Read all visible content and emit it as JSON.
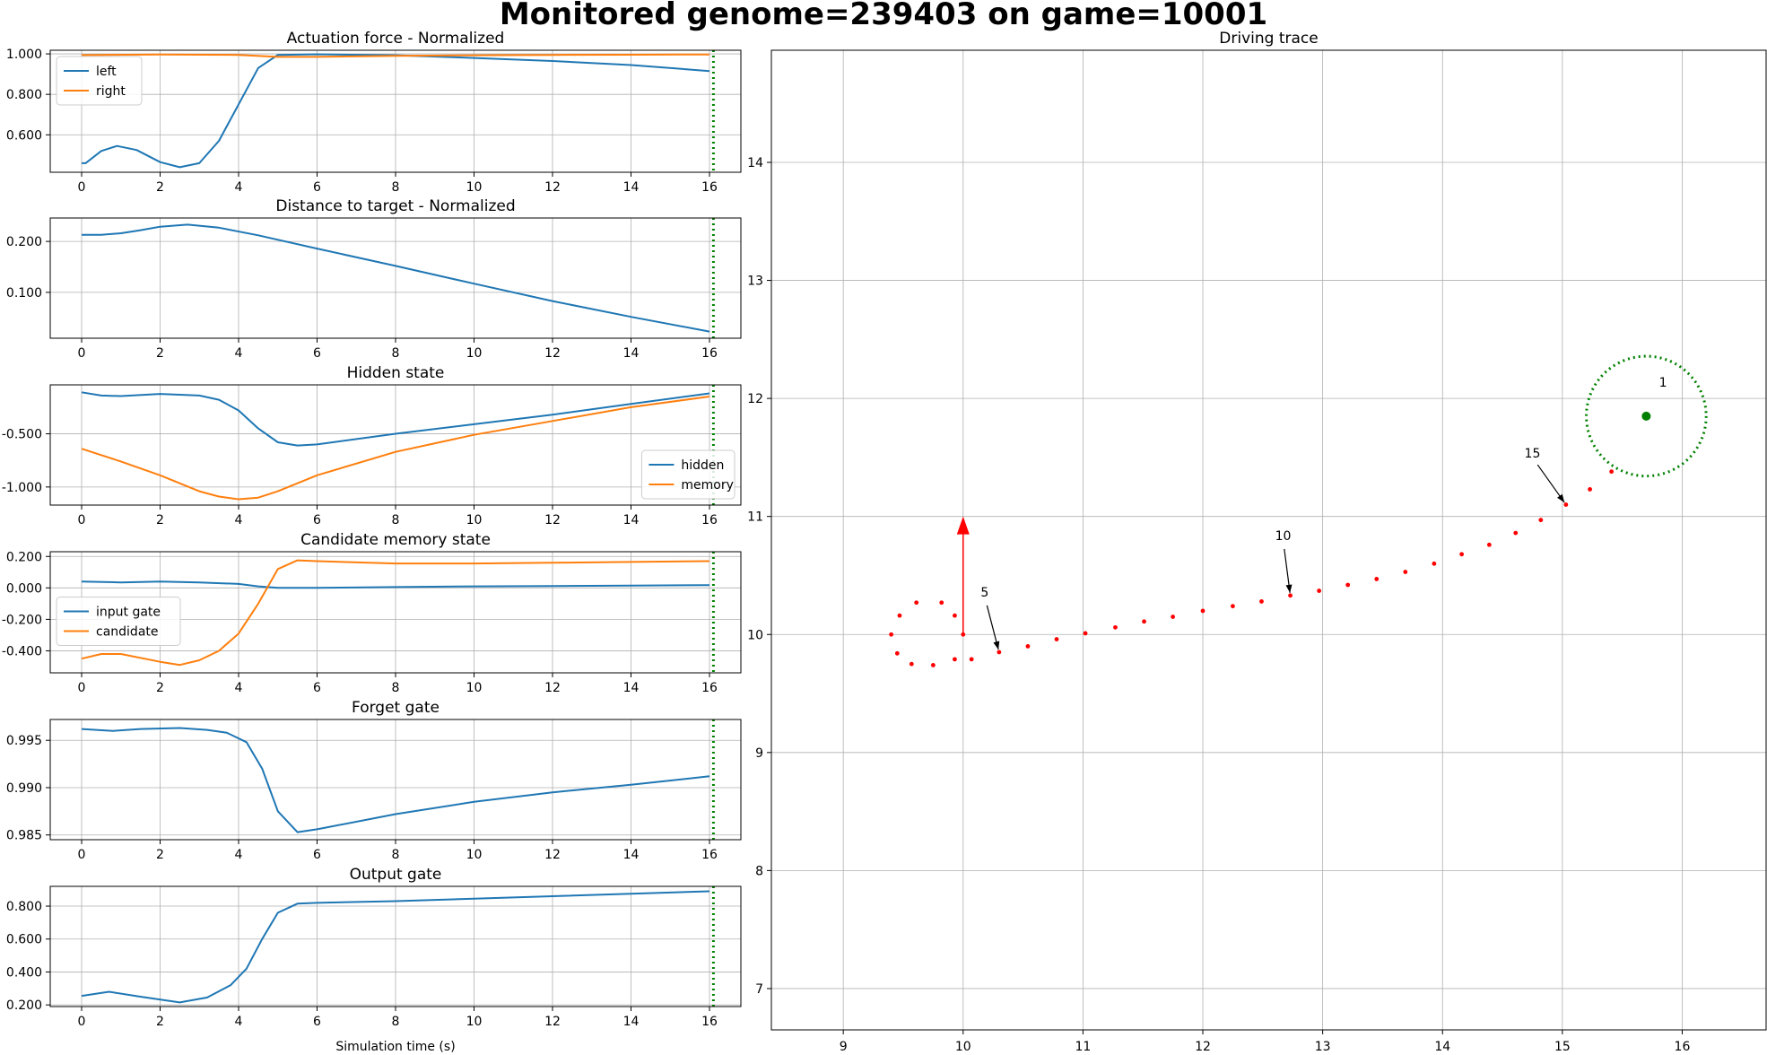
{
  "figure": {
    "title": "Monitored genome=239403 on game=10001",
    "colors": {
      "blue": "#1f77b4",
      "orange": "#ff7f0e",
      "marker": "#008000",
      "trace": "#ff0000",
      "grid": "#b0b0b0"
    }
  },
  "chart_data": [
    {
      "type": "line",
      "title": "Actuation force - Normalized",
      "xlabel": "",
      "xlim": [
        -0.8,
        16.8
      ],
      "ylim": [
        0.415,
        1.018
      ],
      "xticks": [
        0,
        2,
        4,
        6,
        8,
        10,
        12,
        14,
        16
      ],
      "yticks": [
        0.6,
        0.8,
        1.0
      ],
      "ytick_labels": [
        "0.600",
        "0.800",
        "1.000"
      ],
      "marker_x": 16.1,
      "legend": "upper-left",
      "grid": true,
      "series": [
        {
          "name": "left",
          "color": "#1f77b4",
          "x": [
            0,
            0.1,
            0.5,
            0.9,
            1.4,
            2.0,
            2.5,
            3.0,
            3.5,
            4.0,
            4.5,
            5.0,
            6.0,
            8.0,
            10.0,
            12.0,
            14.0,
            16.0
          ],
          "y": [
            0.46,
            0.46,
            0.52,
            0.545,
            0.525,
            0.465,
            0.44,
            0.46,
            0.57,
            0.75,
            0.93,
            0.995,
            0.998,
            0.993,
            0.98,
            0.965,
            0.945,
            0.915
          ]
        },
        {
          "name": "right",
          "color": "#ff7f0e",
          "x": [
            0,
            2,
            4,
            5,
            6,
            8,
            10,
            12,
            14,
            16
          ],
          "y": [
            0.994,
            0.997,
            0.995,
            0.985,
            0.985,
            0.99,
            0.993,
            0.995,
            0.996,
            0.997
          ]
        }
      ]
    },
    {
      "type": "line",
      "title": "Distance to target - Normalized",
      "xlabel": "",
      "xlim": [
        -0.8,
        16.8
      ],
      "ylim": [
        0.01,
        0.246
      ],
      "xticks": [
        0,
        2,
        4,
        6,
        8,
        10,
        12,
        14,
        16
      ],
      "yticks": [
        0.1,
        0.2
      ],
      "ytick_labels": [
        "0.100",
        "0.200"
      ],
      "marker_x": 16.1,
      "legend": "none",
      "grid": true,
      "series": [
        {
          "name": "",
          "color": "#1f77b4",
          "x": [
            0,
            0.5,
            1,
            1.5,
            2,
            2.7,
            3.5,
            4.5,
            6,
            8,
            10,
            12,
            14,
            16
          ],
          "y": [
            0.213,
            0.213,
            0.216,
            0.222,
            0.229,
            0.233,
            0.227,
            0.212,
            0.186,
            0.152,
            0.117,
            0.083,
            0.052,
            0.023
          ]
        }
      ]
    },
    {
      "type": "line",
      "title": "Hidden state",
      "xlabel": "",
      "xlim": [
        -0.8,
        16.8
      ],
      "ylim": [
        -1.17,
        -0.04
      ],
      "xticks": [
        0,
        2,
        4,
        6,
        8,
        10,
        12,
        14,
        16
      ],
      "yticks": [
        -1.0,
        -0.5
      ],
      "ytick_labels": [
        "-1.000",
        "-0.500"
      ],
      "marker_x": 16.1,
      "legend": "lower-right",
      "grid": true,
      "series": [
        {
          "name": "hidden",
          "color": "#1f77b4",
          "x": [
            0,
            0.5,
            1,
            2,
            3,
            3.5,
            4,
            4.5,
            5,
            5.5,
            6,
            8,
            10,
            12,
            14,
            16
          ],
          "y": [
            -0.11,
            -0.14,
            -0.145,
            -0.125,
            -0.14,
            -0.18,
            -0.28,
            -0.45,
            -0.58,
            -0.61,
            -0.6,
            -0.5,
            -0.41,
            -0.32,
            -0.22,
            -0.12
          ]
        },
        {
          "name": "memory",
          "color": "#ff7f0e",
          "x": [
            0,
            1,
            2,
            3,
            3.5,
            4,
            4.5,
            5,
            6,
            8,
            10,
            12,
            14,
            16
          ],
          "y": [
            -0.64,
            -0.76,
            -0.89,
            -1.04,
            -1.09,
            -1.115,
            -1.1,
            -1.04,
            -0.89,
            -0.67,
            -0.51,
            -0.38,
            -0.25,
            -0.15
          ]
        }
      ]
    },
    {
      "type": "line",
      "title": "Candidate memory state",
      "xlabel": "",
      "xlim": [
        -0.8,
        16.8
      ],
      "ylim": [
        -0.54,
        0.23
      ],
      "xticks": [
        0,
        2,
        4,
        6,
        8,
        10,
        12,
        14,
        16
      ],
      "yticks": [
        -0.4,
        -0.2,
        0.0,
        0.2
      ],
      "ytick_labels": [
        "-0.400",
        "-0.200",
        "0.000",
        "0.200"
      ],
      "marker_x": 16.1,
      "legend": "center-left",
      "grid": true,
      "series": [
        {
          "name": "input gate",
          "color": "#1f77b4",
          "x": [
            0,
            1,
            2,
            3,
            4,
            4.5,
            5,
            6,
            8,
            10,
            12,
            14,
            16
          ],
          "y": [
            0.04,
            0.035,
            0.04,
            0.035,
            0.025,
            0.01,
            0.0,
            0.0,
            0.005,
            0.01,
            0.012,
            0.015,
            0.018
          ]
        },
        {
          "name": "candidate",
          "color": "#ff7f0e",
          "x": [
            0,
            0.5,
            1,
            2,
            2.5,
            3,
            3.5,
            4,
            4.5,
            5,
            5.5,
            6,
            8,
            10,
            12,
            14,
            16
          ],
          "y": [
            -0.45,
            -0.42,
            -0.42,
            -0.47,
            -0.49,
            -0.46,
            -0.4,
            -0.29,
            -0.1,
            0.12,
            0.175,
            0.17,
            0.155,
            0.155,
            0.16,
            0.165,
            0.17
          ]
        }
      ]
    },
    {
      "type": "line",
      "title": "Forget gate",
      "xlabel": "",
      "xlim": [
        -0.8,
        16.8
      ],
      "ylim": [
        0.9845,
        0.9972
      ],
      "xticks": [
        0,
        2,
        4,
        6,
        8,
        10,
        12,
        14,
        16
      ],
      "yticks": [
        0.985,
        0.99,
        0.995
      ],
      "ytick_labels": [
        "0.985",
        "0.990",
        "0.995"
      ],
      "marker_x": 16.1,
      "legend": "none",
      "grid": true,
      "series": [
        {
          "name": "",
          "color": "#1f77b4",
          "x": [
            0,
            0.8,
            1.5,
            2.5,
            3.2,
            3.7,
            4.2,
            4.6,
            5.0,
            5.5,
            6,
            8,
            10,
            12,
            14,
            16
          ],
          "y": [
            0.9962,
            0.996,
            0.9962,
            0.9963,
            0.9961,
            0.9958,
            0.9948,
            0.992,
            0.9875,
            0.9853,
            0.9856,
            0.9872,
            0.9885,
            0.9895,
            0.9903,
            0.9912
          ]
        }
      ]
    },
    {
      "type": "line",
      "title": "Output gate",
      "xlabel": "Simulation time (s)",
      "xlim": [
        -0.8,
        16.8
      ],
      "ylim": [
        0.19,
        0.92
      ],
      "xticks": [
        0,
        2,
        4,
        6,
        8,
        10,
        12,
        14,
        16
      ],
      "yticks": [
        0.2,
        0.4,
        0.6,
        0.8
      ],
      "ytick_labels": [
        "0.200",
        "0.400",
        "0.600",
        "0.800"
      ],
      "marker_x": 16.1,
      "legend": "none",
      "grid": true,
      "series": [
        {
          "name": "",
          "color": "#1f77b4",
          "x": [
            0,
            0.7,
            1.5,
            2.5,
            3.2,
            3.8,
            4.2,
            4.6,
            5.0,
            5.5,
            6,
            8,
            10,
            12,
            14,
            16
          ],
          "y": [
            0.255,
            0.28,
            0.25,
            0.215,
            0.245,
            0.32,
            0.42,
            0.6,
            0.76,
            0.815,
            0.82,
            0.83,
            0.845,
            0.86,
            0.875,
            0.89
          ]
        }
      ]
    },
    {
      "type": "scatter",
      "title": "Driving trace",
      "xlabel": "",
      "xlim": [
        8.4,
        16.7
      ],
      "ylim": [
        6.65,
        14.95
      ],
      "xticks": [
        9,
        10,
        11,
        12,
        13,
        14,
        15,
        16
      ],
      "yticks": [
        7,
        8,
        9,
        10,
        11,
        12,
        13,
        14
      ],
      "grid": true,
      "target": {
        "x": 15.7,
        "y": 11.85,
        "radius": 0.5
      },
      "start_arrow": {
        "x": 10.0,
        "y": 10.0,
        "dx": 0,
        "dy": 1.0
      },
      "points": {
        "x": [
          10.0,
          9.93,
          9.82,
          9.61,
          9.47,
          9.4,
          9.45,
          9.57,
          9.75,
          9.93,
          10.07,
          10.3,
          10.54,
          10.78,
          11.02,
          11.27,
          11.51,
          11.75,
          12.0,
          12.25,
          12.49,
          12.73,
          12.97,
          13.21,
          13.45,
          13.69,
          13.93,
          14.16,
          14.39,
          14.61,
          14.82,
          15.03,
          15.23,
          15.41
        ],
        "y": [
          10.0,
          10.16,
          10.27,
          10.27,
          10.16,
          10.0,
          9.84,
          9.75,
          9.74,
          9.79,
          9.79,
          9.85,
          9.9,
          9.96,
          10.01,
          10.06,
          10.11,
          10.15,
          10.2,
          10.24,
          10.28,
          10.33,
          10.37,
          10.42,
          10.47,
          10.53,
          10.6,
          10.68,
          10.76,
          10.86,
          10.97,
          11.1,
          11.23,
          11.38
        ]
      },
      "annotations": [
        {
          "text": "5",
          "x": 10.3,
          "y": 9.85,
          "tx": 10.18,
          "ty": 10.32
        },
        {
          "text": "10",
          "x": 12.73,
          "y": 10.33,
          "tx": 12.67,
          "ty": 10.8
        },
        {
          "text": "15",
          "x": 15.03,
          "y": 11.1,
          "tx": 14.75,
          "ty": 11.5
        },
        {
          "text": "1",
          "x": 15.7,
          "y": 11.85,
          "tx": 15.84,
          "ty": 12.1
        }
      ]
    }
  ]
}
